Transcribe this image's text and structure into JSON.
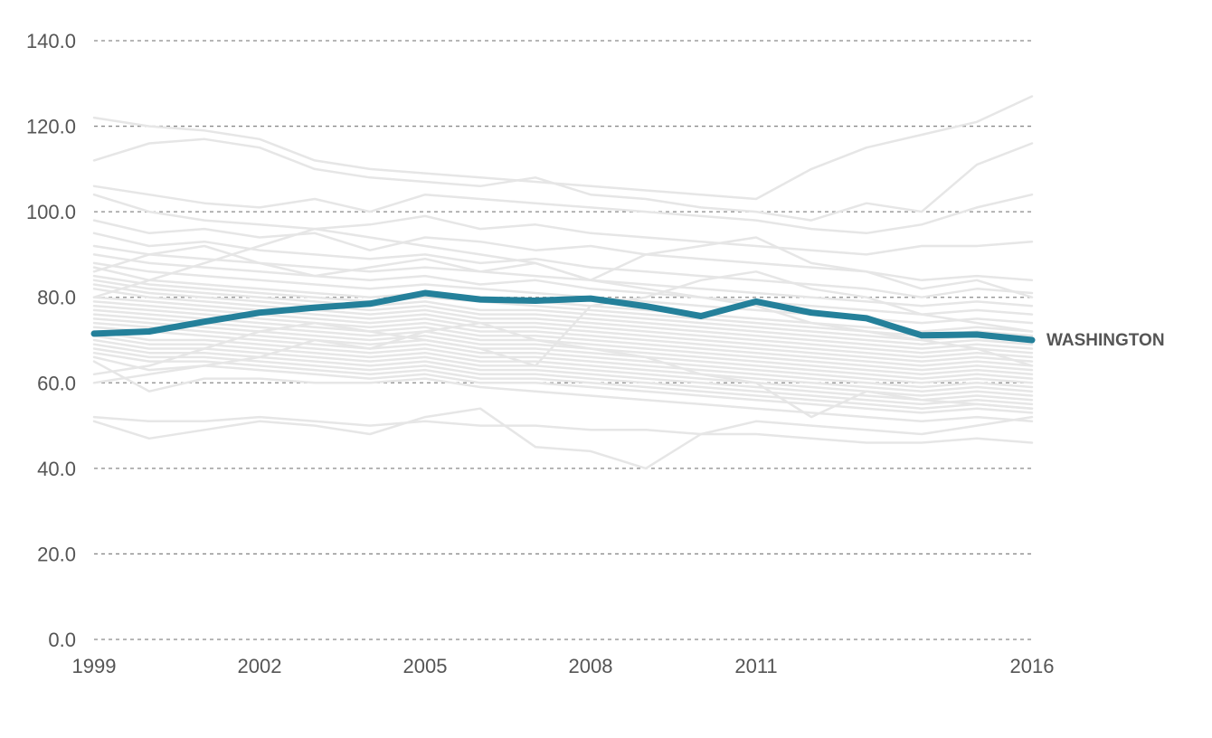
{
  "chart_data": {
    "type": "line",
    "x": [
      1999,
      2000,
      2001,
      2002,
      2003,
      2004,
      2005,
      2006,
      2007,
      2008,
      2009,
      2010,
      2011,
      2012,
      2013,
      2014,
      2015,
      2016
    ],
    "x_ticks": [
      "1999",
      "2002",
      "2005",
      "2008",
      "2011",
      "2016"
    ],
    "y_ticks": [
      "0.0",
      "20.0",
      "40.0",
      "60.0",
      "80.0",
      "100.0",
      "120.0",
      "140.0"
    ],
    "ylim": [
      0,
      140
    ],
    "grid": "horizontal dashed",
    "title": "",
    "xlabel": "",
    "ylabel": "",
    "highlight": {
      "name": "WASHINGTON",
      "color": "#24809a",
      "values": [
        71.5,
        72.0,
        74.3,
        76.4,
        77.6,
        78.5,
        81.0,
        79.5,
        79.2,
        79.7,
        77.9,
        75.6,
        79.0,
        76.4,
        75.1,
        71.1,
        71.3,
        70.0
      ]
    },
    "background_color": "#e6e6e6",
    "background_series": [
      {
        "values": [
          122,
          120,
          119,
          117,
          112,
          110,
          109,
          108,
          107,
          106,
          105,
          104,
          103,
          110,
          115,
          118,
          121,
          127
        ]
      },
      {
        "values": [
          112,
          116,
          117,
          115,
          110,
          108,
          107,
          106,
          108,
          104,
          103,
          101,
          100,
          98,
          102,
          100,
          111,
          116
        ]
      },
      {
        "values": [
          106,
          104,
          102,
          101,
          103,
          100,
          104,
          103,
          102,
          101,
          100,
          99,
          98,
          96,
          95,
          97,
          101,
          104
        ]
      },
      {
        "values": [
          104,
          100,
          98,
          97,
          96,
          97,
          99,
          96,
          97,
          95,
          94,
          93,
          92,
          91,
          90,
          92,
          92,
          93
        ]
      },
      {
        "values": [
          98,
          95,
          96,
          94,
          95,
          91,
          94,
          93,
          91,
          92,
          90,
          89,
          88,
          87,
          86,
          84,
          85,
          84
        ]
      },
      {
        "values": [
          95,
          92,
          93,
          91,
          90,
          89,
          90,
          88,
          89,
          87,
          86,
          85,
          84,
          83,
          82,
          80,
          82,
          81
        ]
      },
      {
        "values": [
          92,
          90,
          89,
          88,
          87,
          86,
          87,
          86,
          85,
          84,
          83,
          82,
          81,
          80,
          79,
          78,
          79,
          78
        ]
      },
      {
        "values": [
          90,
          88,
          87,
          86,
          85,
          84,
          85,
          83,
          84,
          82,
          81,
          80,
          79,
          78,
          77,
          76,
          77,
          76
        ]
      },
      {
        "values": [
          88,
          86,
          85,
          84,
          83,
          82,
          83,
          82,
          81,
          80,
          79,
          78,
          77,
          76,
          75,
          74,
          75,
          74
        ]
      },
      {
        "values": [
          87,
          84,
          83,
          82,
          81,
          80,
          81,
          80,
          79,
          78,
          77,
          76,
          75,
          74,
          73,
          72,
          73,
          72
        ]
      },
      {
        "values": [
          85,
          83,
          82,
          81,
          80,
          79,
          80,
          79,
          78,
          77,
          76,
          75,
          74,
          73,
          72,
          71,
          72,
          71
        ]
      },
      {
        "values": [
          84,
          82,
          81,
          80,
          79,
          78,
          79,
          77,
          77,
          76,
          75,
          74,
          73,
          72,
          71,
          70,
          71,
          70
        ]
      },
      {
        "values": [
          83,
          81,
          80,
          79,
          78,
          77,
          78,
          76,
          76,
          75,
          74,
          73,
          72,
          71,
          70,
          69,
          70,
          69
        ]
      },
      {
        "values": [
          82,
          80,
          79,
          78,
          77,
          76,
          77,
          75,
          75,
          74,
          73,
          72,
          71,
          70,
          69,
          68,
          69,
          68
        ]
      },
      {
        "values": [
          80,
          79,
          78,
          77,
          76,
          75,
          76,
          74,
          74,
          73,
          72,
          71,
          70,
          69,
          68,
          67,
          68,
          67
        ]
      },
      {
        "values": [
          79,
          78,
          77,
          76,
          75,
          74,
          75,
          73,
          73,
          72,
          71,
          70,
          69,
          68,
          67,
          66,
          67,
          66
        ]
      },
      {
        "values": [
          78,
          77,
          76,
          75,
          74,
          73,
          74,
          72,
          72,
          71,
          70,
          69,
          68,
          67,
          66,
          65,
          66,
          65
        ]
      },
      {
        "values": [
          77,
          76,
          75,
          74,
          73,
          72,
          73,
          71,
          71,
          70,
          69,
          68,
          67,
          66,
          65,
          64,
          65,
          64
        ]
      },
      {
        "values": [
          76,
          75,
          74,
          73,
          72,
          71,
          72,
          70,
          70,
          69,
          68,
          67,
          66,
          65,
          64,
          63,
          64,
          63
        ]
      },
      {
        "values": [
          75,
          74,
          73,
          72,
          71,
          70,
          71,
          69,
          69,
          68,
          67,
          66,
          65,
          64,
          63,
          62,
          63,
          62
        ]
      },
      {
        "values": [
          74,
          73,
          72,
          71,
          70,
          69,
          70,
          68,
          68,
          67,
          66,
          65,
          64,
          63,
          62,
          61,
          62,
          61
        ]
      },
      {
        "values": [
          73,
          72,
          71,
          70,
          69,
          68,
          69,
          67,
          67,
          66,
          65,
          64,
          63,
          62,
          61,
          60,
          61,
          60
        ]
      },
      {
        "values": [
          72,
          70,
          70,
          69,
          68,
          67,
          68,
          66,
          66,
          65,
          64,
          63,
          62,
          61,
          60,
          59,
          60,
          59
        ]
      },
      {
        "values": [
          71,
          69,
          69,
          68,
          67,
          66,
          67,
          65,
          65,
          64,
          63,
          62,
          61,
          60,
          59,
          58,
          59,
          58
        ]
      },
      {
        "values": [
          70,
          68,
          68,
          67,
          66,
          65,
          66,
          64,
          64,
          63,
          62,
          61,
          60,
          59,
          58,
          57,
          58,
          57
        ]
      },
      {
        "values": [
          69,
          67,
          67,
          66,
          65,
          64,
          65,
          63,
          63,
          62,
          61,
          60,
          59,
          58,
          57,
          56,
          57,
          56
        ]
      },
      {
        "values": [
          68,
          66,
          66,
          65,
          64,
          63,
          64,
          62,
          62,
          61,
          60,
          59,
          58,
          57,
          56,
          55,
          56,
          55
        ]
      },
      {
        "values": [
          67,
          65,
          65,
          64,
          63,
          62,
          63,
          61,
          61,
          60,
          59,
          58,
          57,
          56,
          55,
          54,
          55,
          54
        ]
      },
      {
        "values": [
          66,
          63,
          64,
          63,
          62,
          61,
          62,
          60,
          60,
          59,
          58,
          57,
          56,
          55,
          54,
          53,
          54,
          53
        ]
      },
      {
        "values": [
          65,
          58,
          61,
          61,
          60,
          60,
          61,
          59,
          58,
          57,
          56,
          55,
          54,
          53,
          52,
          51,
          52,
          51
        ]
      },
      {
        "values": [
          52,
          51,
          51,
          52,
          51,
          50,
          51,
          50,
          50,
          49,
          49,
          48,
          48,
          47,
          46,
          46,
          47,
          46
        ]
      },
      {
        "values": [
          51,
          47,
          49,
          51,
          50,
          48,
          52,
          54,
          45,
          44,
          40,
          48,
          51,
          50,
          49,
          48,
          50,
          52
        ]
      },
      {
        "values": [
          86,
          90,
          92,
          88,
          85,
          87,
          89,
          86,
          88,
          84,
          90,
          92,
          94,
          88,
          86,
          82,
          84,
          80
        ]
      },
      {
        "values": [
          60,
          62,
          64,
          66,
          70,
          68,
          72,
          74,
          70,
          68,
          66,
          62,
          60,
          52,
          58,
          56,
          55,
          54
        ]
      },
      {
        "values": [
          80,
          84,
          88,
          92,
          96,
          94,
          92,
          90,
          88,
          84,
          82,
          80,
          78,
          74,
          72,
          70,
          68,
          64
        ]
      },
      {
        "values": [
          62,
          64,
          68,
          72,
          74,
          72,
          70,
          68,
          64,
          78,
          80,
          84,
          86,
          82,
          80,
          76,
          74,
          72
        ]
      }
    ]
  }
}
